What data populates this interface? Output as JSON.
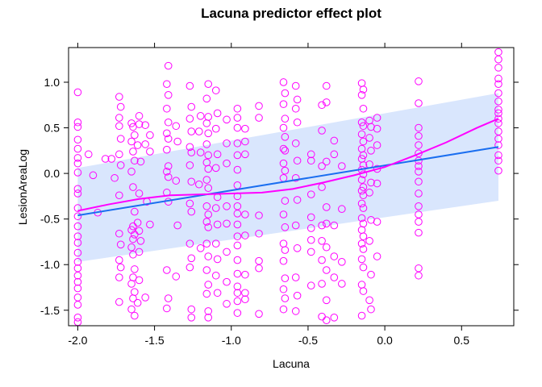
{
  "chart_data": {
    "type": "scatter",
    "title": "Lacuna predictor effect plot",
    "xlabel": "Lacuna",
    "ylabel": "LesionAreaLog",
    "xlim": [
      -2.06,
      0.84
    ],
    "ylim": [
      -1.67,
      1.38
    ],
    "xticks": [
      -2.0,
      -1.5,
      -1.0,
      -0.5,
      0.0,
      0.5
    ],
    "xtick_labels": [
      "-2.0",
      "-1.5",
      "-1.0",
      "-0.5",
      "0.0",
      "0.5"
    ],
    "yticks": [
      -1.5,
      -1.0,
      -0.5,
      0.0,
      0.5,
      1.0
    ],
    "ytick_labels": [
      "-1.5",
      "-1.0",
      "-0.5",
      "0.0",
      "0.5",
      "1.0"
    ],
    "grid": false,
    "colors": {
      "points": "#ff00ff",
      "fit_line": "#1a6ef0",
      "smooth_line": "#ff00ff",
      "band": "#d9e6fd"
    },
    "fit_line": {
      "x": [
        -2.0,
        0.74
      ],
      "y": [
        -0.46,
        0.29
      ]
    },
    "confidence_band": {
      "x": [
        -2.0,
        0.74
      ],
      "lower": [
        -0.97,
        -0.3
      ],
      "upper": [
        0.06,
        0.88
      ]
    },
    "smooth_line": {
      "x": [
        -2.0,
        -1.8,
        -1.6,
        -1.4,
        -1.2,
        -1.0,
        -0.8,
        -0.6,
        -0.4,
        -0.2,
        0.0,
        0.2,
        0.4,
        0.6,
        0.74
      ],
      "y": [
        -0.41,
        -0.34,
        -0.28,
        -0.24,
        -0.23,
        -0.22,
        -0.21,
        -0.17,
        -0.1,
        -0.02,
        0.07,
        0.2,
        0.34,
        0.5,
        0.6
      ]
    },
    "points": [
      [
        -2.0,
        0.89
      ],
      [
        -2.0,
        0.56
      ],
      [
        -2.0,
        0.51
      ],
      [
        -2.0,
        0.37
      ],
      [
        -2.0,
        0.27
      ],
      [
        -2.0,
        0.17
      ],
      [
        -2.0,
        0.11
      ],
      [
        -2.0,
        0.01
      ],
      [
        -2.0,
        -0.17
      ],
      [
        -2.0,
        -0.22
      ],
      [
        -2.0,
        -0.38
      ],
      [
        -2.0,
        -0.47
      ],
      [
        -2.0,
        -0.58
      ],
      [
        -2.0,
        -0.69
      ],
      [
        -2.0,
        -0.76
      ],
      [
        -2.0,
        -0.87
      ],
      [
        -2.0,
        -0.97
      ],
      [
        -2.0,
        -1.04
      ],
      [
        -2.0,
        -1.12
      ],
      [
        -2.0,
        -1.19
      ],
      [
        -2.0,
        -1.26
      ],
      [
        -2.0,
        -1.36
      ],
      [
        -2.0,
        -1.44
      ],
      [
        -2.0,
        -1.58
      ],
      [
        -2.0,
        -1.63
      ],
      [
        -1.93,
        0.21
      ],
      [
        -1.9,
        -0.02
      ],
      [
        -1.87,
        -0.43
      ],
      [
        -1.82,
        0.16
      ],
      [
        -1.78,
        0.16
      ],
      [
        -1.76,
        -0.05
      ],
      [
        -1.73,
        0.84
      ],
      [
        -1.72,
        0.73
      ],
      [
        -1.73,
        0.61
      ],
      [
        -1.73,
        0.52
      ],
      [
        -1.72,
        0.38
      ],
      [
        -1.73,
        0.21
      ],
      [
        -1.72,
        0.09
      ],
      [
        -1.73,
        -0.24
      ],
      [
        -1.73,
        -0.66
      ],
      [
        -1.72,
        -0.78
      ],
      [
        -1.73,
        -0.95
      ],
      [
        -1.72,
        -1.03
      ],
      [
        -1.73,
        -1.14
      ],
      [
        -1.73,
        -1.41
      ],
      [
        -1.65,
        0.55
      ],
      [
        -1.64,
        0.51
      ],
      [
        -1.63,
        0.42
      ],
      [
        -1.65,
        0.35
      ],
      [
        -1.64,
        0.24
      ],
      [
        -1.63,
        0.14
      ],
      [
        -1.65,
        0.02
      ],
      [
        -1.64,
        -0.15
      ],
      [
        -1.63,
        -0.42
      ],
      [
        -1.64,
        -0.58
      ],
      [
        -1.65,
        -0.62
      ],
      [
        -1.63,
        -0.67
      ],
      [
        -1.64,
        -0.72
      ],
      [
        -1.65,
        -0.81
      ],
      [
        -1.64,
        -0.89
      ],
      [
        -1.63,
        -1.05
      ],
      [
        -1.64,
        -1.14
      ],
      [
        -1.65,
        -1.21
      ],
      [
        -1.63,
        -1.3
      ],
      [
        -1.64,
        -1.37
      ],
      [
        -1.65,
        -1.49
      ],
      [
        -1.63,
        -1.56
      ],
      [
        -1.6,
        0.63
      ],
      [
        -1.6,
        0.54
      ],
      [
        -1.61,
        0.31
      ],
      [
        -1.59,
        0.13
      ],
      [
        -1.6,
        -0.22
      ],
      [
        -1.61,
        -0.54
      ],
      [
        -1.6,
        -0.63
      ],
      [
        -1.59,
        -0.74
      ],
      [
        -1.6,
        -0.86
      ],
      [
        -1.6,
        -1.17
      ],
      [
        -1.61,
        -1.42
      ],
      [
        -1.56,
        0.53
      ],
      [
        -1.56,
        0.32
      ],
      [
        -1.55,
        -0.31
      ],
      [
        -1.56,
        -1.36
      ],
      [
        -1.53,
        0.42
      ],
      [
        -1.53,
        0.24
      ],
      [
        -1.53,
        -0.56
      ],
      [
        -1.41,
        1.18
      ],
      [
        -1.42,
        0.98
      ],
      [
        -1.41,
        0.86
      ],
      [
        -1.42,
        0.71
      ],
      [
        -1.41,
        0.56
      ],
      [
        -1.42,
        0.44
      ],
      [
        -1.41,
        0.38
      ],
      [
        -1.42,
        0.26
      ],
      [
        -1.41,
        0.08
      ],
      [
        -1.42,
        0.02
      ],
      [
        -1.41,
        -0.04
      ],
      [
        -1.42,
        -0.21
      ],
      [
        -1.41,
        -0.31
      ],
      [
        -1.42,
        -1.06
      ],
      [
        -1.41,
        -1.37
      ],
      [
        -1.42,
        -1.48
      ],
      [
        -1.36,
        0.52
      ],
      [
        -1.35,
        0.35
      ],
      [
        -1.36,
        -0.08
      ],
      [
        -1.35,
        -0.57
      ],
      [
        -1.36,
        -1.13
      ],
      [
        -1.27,
        0.96
      ],
      [
        -1.26,
        0.73
      ],
      [
        -1.27,
        0.6
      ],
      [
        -1.26,
        0.46
      ],
      [
        -1.27,
        0.29
      ],
      [
        -1.26,
        0.23
      ],
      [
        -1.27,
        0.09
      ],
      [
        -1.26,
        -0.09
      ],
      [
        -1.27,
        -0.33
      ],
      [
        -1.26,
        -0.42
      ],
      [
        -1.27,
        -0.77
      ],
      [
        -1.26,
        -0.93
      ],
      [
        -1.27,
        -1.03
      ],
      [
        -1.26,
        -1.49
      ],
      [
        -1.26,
        -1.58
      ],
      [
        -1.2,
        0.63
      ],
      [
        -1.21,
        0.46
      ],
      [
        -1.2,
        0.23
      ],
      [
        -1.21,
        -0.12
      ],
      [
        -1.2,
        -0.82
      ],
      [
        -1.15,
        0.98
      ],
      [
        -1.16,
        0.82
      ],
      [
        -1.15,
        0.62
      ],
      [
        -1.16,
        0.55
      ],
      [
        -1.15,
        0.44
      ],
      [
        -1.16,
        0.32
      ],
      [
        -1.15,
        0.2
      ],
      [
        -1.16,
        0.12
      ],
      [
        -1.15,
        0.05
      ],
      [
        -1.16,
        -0.07
      ],
      [
        -1.15,
        -0.16
      ],
      [
        -1.16,
        -0.36
      ],
      [
        -1.15,
        -0.45
      ],
      [
        -1.16,
        -0.53
      ],
      [
        -1.15,
        -0.59
      ],
      [
        -1.16,
        -0.77
      ],
      [
        -1.15,
        -0.91
      ],
      [
        -1.16,
        -1.06
      ],
      [
        -1.15,
        -1.22
      ],
      [
        -1.16,
        -1.32
      ],
      [
        -1.15,
        -1.51
      ],
      [
        -1.15,
        -1.58
      ],
      [
        -1.1,
        0.91
      ],
      [
        -1.09,
        0.66
      ],
      [
        -1.1,
        0.49
      ],
      [
        -1.09,
        0.21
      ],
      [
        -1.1,
        0.06
      ],
      [
        -1.09,
        -0.26
      ],
      [
        -1.1,
        -0.38
      ],
      [
        -1.09,
        -0.56
      ],
      [
        -1.1,
        -0.77
      ],
      [
        -1.09,
        -0.94
      ],
      [
        -1.1,
        -1.12
      ],
      [
        -1.09,
        -1.31
      ],
      [
        -1.03,
        0.59
      ],
      [
        -1.03,
        0.33
      ],
      [
        -1.03,
        0.11
      ],
      [
        -1.03,
        -0.36
      ],
      [
        -1.03,
        -0.55
      ],
      [
        -1.03,
        -0.86
      ],
      [
        -1.03,
        -1.19
      ],
      [
        -1.03,
        -1.43
      ],
      [
        -0.96,
        0.71
      ],
      [
        -0.96,
        0.61
      ],
      [
        -0.96,
        0.5
      ],
      [
        -0.96,
        0.33
      ],
      [
        -0.96,
        0.2
      ],
      [
        -0.96,
        0.04
      ],
      [
        -0.96,
        -0.13
      ],
      [
        -0.96,
        -0.25
      ],
      [
        -0.96,
        -0.36
      ],
      [
        -0.96,
        -0.44
      ],
      [
        -0.96,
        -0.56
      ],
      [
        -0.96,
        -0.69
      ],
      [
        -0.96,
        -0.79
      ],
      [
        -0.96,
        -0.95
      ],
      [
        -0.96,
        -1.1
      ],
      [
        -0.96,
        -1.24
      ],
      [
        -0.96,
        -1.31
      ],
      [
        -0.96,
        -1.4
      ],
      [
        -0.96,
        -1.53
      ],
      [
        -0.91,
        0.49
      ],
      [
        -0.91,
        0.35
      ],
      [
        -0.91,
        0.21
      ],
      [
        -0.91,
        -0.45
      ],
      [
        -0.91,
        -0.68
      ],
      [
        -0.91,
        -1.11
      ],
      [
        -0.91,
        -1.31
      ],
      [
        -0.91,
        -1.38
      ],
      [
        -0.82,
        0.74
      ],
      [
        -0.82,
        0.61
      ],
      [
        -0.82,
        -0.46
      ],
      [
        -0.82,
        -0.66
      ],
      [
        -0.82,
        -0.96
      ],
      [
        -0.82,
        -1.04
      ],
      [
        -0.82,
        -1.54
      ],
      [
        -0.66,
        1.0
      ],
      [
        -0.65,
        0.88
      ],
      [
        -0.66,
        0.76
      ],
      [
        -0.65,
        0.6
      ],
      [
        -0.66,
        0.5
      ],
      [
        -0.65,
        0.4
      ],
      [
        -0.66,
        0.27
      ],
      [
        -0.65,
        0.25
      ],
      [
        -0.66,
        0.11
      ],
      [
        -0.65,
        0.03
      ],
      [
        -0.66,
        -0.05
      ],
      [
        -0.65,
        -0.3
      ],
      [
        -0.66,
        -0.45
      ],
      [
        -0.65,
        -0.59
      ],
      [
        -0.66,
        -0.77
      ],
      [
        -0.65,
        -0.84
      ],
      [
        -0.66,
        -0.96
      ],
      [
        -0.65,
        -1.15
      ],
      [
        -0.66,
        -1.27
      ],
      [
        -0.65,
        -1.37
      ],
      [
        -0.66,
        -1.49
      ],
      [
        -0.58,
        0.96
      ],
      [
        -0.57,
        0.81
      ],
      [
        -0.58,
        0.71
      ],
      [
        -0.57,
        0.56
      ],
      [
        -0.58,
        0.33
      ],
      [
        -0.57,
        0.14
      ],
      [
        -0.58,
        -0.05
      ],
      [
        -0.57,
        -0.29
      ],
      [
        -0.58,
        -0.57
      ],
      [
        -0.57,
        -0.82
      ],
      [
        -0.58,
        -1.14
      ],
      [
        -0.57,
        -1.34
      ],
      [
        -0.58,
        -1.51
      ],
      [
        -0.48,
        0.21
      ],
      [
        -0.48,
        0.14
      ],
      [
        -0.48,
        -0.23
      ],
      [
        -0.48,
        -0.48
      ],
      [
        -0.48,
        -0.6
      ],
      [
        -0.48,
        -0.73
      ],
      [
        -0.48,
        -0.86
      ],
      [
        -0.48,
        -1.23
      ],
      [
        -0.41,
        0.75
      ],
      [
        -0.41,
        0.47
      ],
      [
        -0.41,
        0.08
      ],
      [
        -0.41,
        -0.15
      ],
      [
        -0.41,
        -0.57
      ],
      [
        -0.41,
        -0.74
      ],
      [
        -0.41,
        -0.95
      ],
      [
        -0.41,
        -1.21
      ],
      [
        -0.41,
        -1.57
      ],
      [
        -0.38,
        0.96
      ],
      [
        -0.38,
        0.78
      ],
      [
        -0.38,
        0.13
      ],
      [
        -0.38,
        -0.37
      ],
      [
        -0.38,
        -0.55
      ],
      [
        -0.38,
        -0.81
      ],
      [
        -0.38,
        -1.06
      ],
      [
        -0.38,
        -1.39
      ],
      [
        -0.38,
        -1.61
      ],
      [
        -0.33,
        0.36
      ],
      [
        -0.33,
        0.21
      ],
      [
        -0.33,
        -0.57
      ],
      [
        -0.33,
        -0.91
      ],
      [
        -0.33,
        -1.14
      ],
      [
        -0.33,
        -1.58
      ],
      [
        -0.28,
        0.08
      ],
      [
        -0.28,
        -0.39
      ],
      [
        -0.28,
        -0.97
      ],
      [
        -0.28,
        -1.21
      ],
      [
        -0.15,
        0.99
      ],
      [
        -0.14,
        0.92
      ],
      [
        -0.15,
        0.86
      ],
      [
        -0.14,
        0.71
      ],
      [
        -0.15,
        0.56
      ],
      [
        -0.14,
        0.52
      ],
      [
        -0.15,
        0.43
      ],
      [
        -0.14,
        0.35
      ],
      [
        -0.15,
        0.27
      ],
      [
        -0.14,
        0.2
      ],
      [
        -0.15,
        0.16
      ],
      [
        -0.14,
        0.09
      ],
      [
        -0.15,
        0.04
      ],
      [
        -0.14,
        -0.01
      ],
      [
        -0.15,
        -0.07
      ],
      [
        -0.14,
        -0.15
      ],
      [
        -0.15,
        -0.19
      ],
      [
        -0.14,
        -0.24
      ],
      [
        -0.15,
        -0.33
      ],
      [
        -0.14,
        -0.38
      ],
      [
        -0.15,
        -0.49
      ],
      [
        -0.14,
        -0.55
      ],
      [
        -0.15,
        -0.62
      ],
      [
        -0.14,
        -0.69
      ],
      [
        -0.15,
        -0.77
      ],
      [
        -0.14,
        -0.83
      ],
      [
        -0.15,
        -0.94
      ],
      [
        -0.14,
        -1.03
      ],
      [
        -0.15,
        -1.22
      ],
      [
        -0.14,
        -1.29
      ],
      [
        -0.15,
        -1.56
      ],
      [
        -0.1,
        0.58
      ],
      [
        -0.09,
        0.51
      ],
      [
        -0.1,
        0.39
      ],
      [
        -0.09,
        0.25
      ],
      [
        -0.1,
        0.1
      ],
      [
        -0.09,
        -0.1
      ],
      [
        -0.1,
        -0.21
      ],
      [
        -0.09,
        -0.51
      ],
      [
        -0.1,
        -0.74
      ],
      [
        -0.09,
        -1.11
      ],
      [
        -0.1,
        -1.39
      ],
      [
        -0.09,
        -1.49
      ],
      [
        -0.05,
        0.61
      ],
      [
        -0.05,
        0.49
      ],
      [
        -0.05,
        0.31
      ],
      [
        -0.05,
        0.05
      ],
      [
        -0.05,
        -0.11
      ],
      [
        -0.05,
        -0.53
      ],
      [
        -0.05,
        -0.91
      ],
      [
        0.22,
        1.01
      ],
      [
        0.22,
        0.77
      ],
      [
        0.22,
        0.5
      ],
      [
        0.22,
        0.41
      ],
      [
        0.22,
        0.31
      ],
      [
        0.22,
        0.22
      ],
      [
        0.22,
        0.14
      ],
      [
        0.22,
        0.08
      ],
      [
        0.22,
        0.02
      ],
      [
        0.22,
        -0.09
      ],
      [
        0.22,
        -0.22
      ],
      [
        0.22,
        -0.36
      ],
      [
        0.22,
        -0.45
      ],
      [
        0.22,
        -0.53
      ],
      [
        0.22,
        -0.65
      ],
      [
        0.22,
        -1.04
      ],
      [
        0.22,
        -1.12
      ],
      [
        0.74,
        1.33
      ],
      [
        0.74,
        1.25
      ],
      [
        0.74,
        1.16
      ],
      [
        0.74,
        1.04
      ],
      [
        0.74,
        0.98
      ],
      [
        0.74,
        0.88
      ],
      [
        0.74,
        0.79
      ],
      [
        0.74,
        0.7
      ],
      [
        0.74,
        0.66
      ],
      [
        0.74,
        0.6
      ],
      [
        0.74,
        0.55
      ],
      [
        0.74,
        0.46
      ],
      [
        0.74,
        0.38
      ],
      [
        0.74,
        0.31
      ],
      [
        0.74,
        0.2
      ],
      [
        0.74,
        0.14
      ],
      [
        0.74,
        0.03
      ]
    ]
  }
}
